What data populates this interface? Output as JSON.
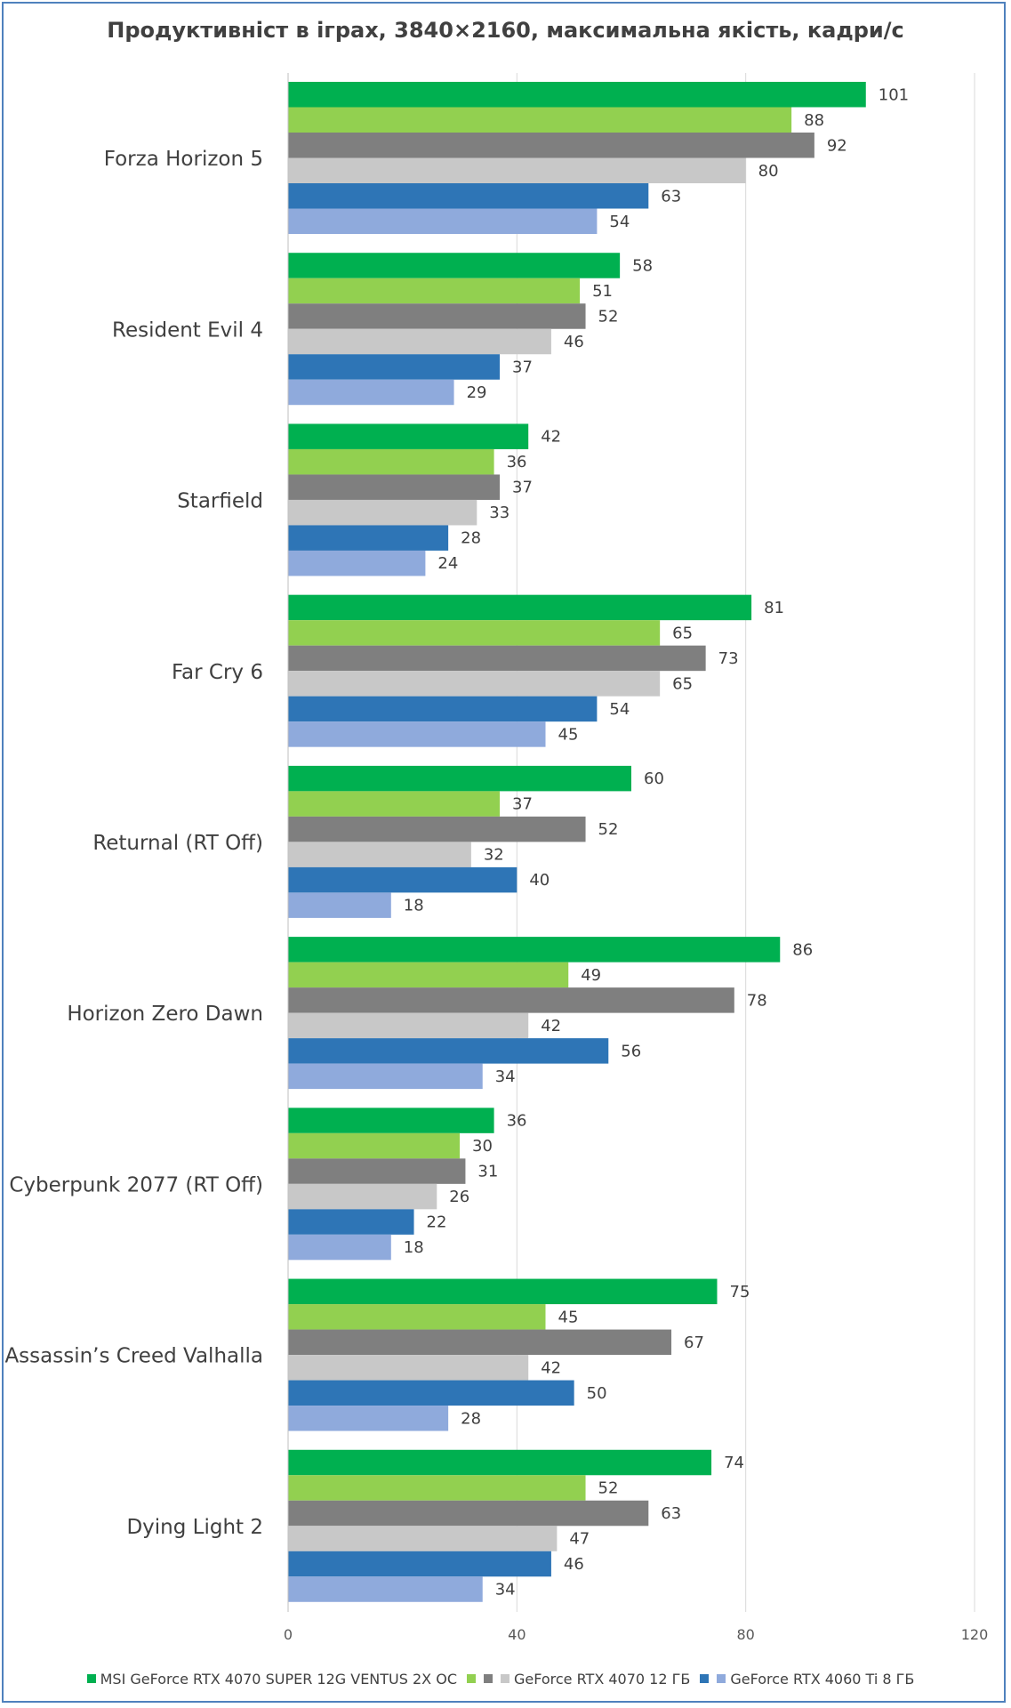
{
  "chart_data": {
    "type": "bar",
    "orientation": "horizontal",
    "title": "Продуктивніст в іграх, 3840×2160, максимальна якість, кадри/с",
    "categories": [
      "Forza Horizon 5",
      "Resident Evil 4",
      "Starfield",
      "Far Cry 6",
      "Returnal (RT Off)",
      "Horizon Zero Dawn",
      "Cyberpunk 2077 (RT Off)",
      "Assassin’s Creed  Valhalla",
      "Dying Light 2"
    ],
    "series": [
      {
        "name": "MSI GeForce RTX 4070 SUPER 12G VENTUS 2X OC",
        "color": "#00b050",
        "values": [
          101,
          58,
          42,
          81,
          60,
          86,
          36,
          75,
          74
        ]
      },
      {
        "color": "#92d050",
        "values": [
          88,
          51,
          36,
          65,
          37,
          49,
          30,
          45,
          52
        ]
      },
      {
        "color": "#7f7f7f",
        "values": [
          92,
          52,
          37,
          73,
          52,
          78,
          31,
          67,
          63
        ]
      },
      {
        "name": "GeForce RTX 4070 12 ГБ",
        "color": "#c8c8c8",
        "values": [
          80,
          46,
          33,
          65,
          32,
          42,
          26,
          42,
          47
        ]
      },
      {
        "color": "#2e75b6",
        "values": [
          63,
          37,
          28,
          54,
          40,
          56,
          22,
          50,
          46
        ]
      },
      {
        "name": "GeForce RTX 4060 Ti 8 ГБ",
        "color": "#8faadc",
        "values": [
          54,
          29,
          24,
          45,
          18,
          34,
          18,
          28,
          34
        ]
      }
    ],
    "xlim": [
      0,
      120
    ],
    "xticks": [
      0,
      40,
      80,
      120
    ],
    "grid": true,
    "legend_position": "bottom"
  }
}
